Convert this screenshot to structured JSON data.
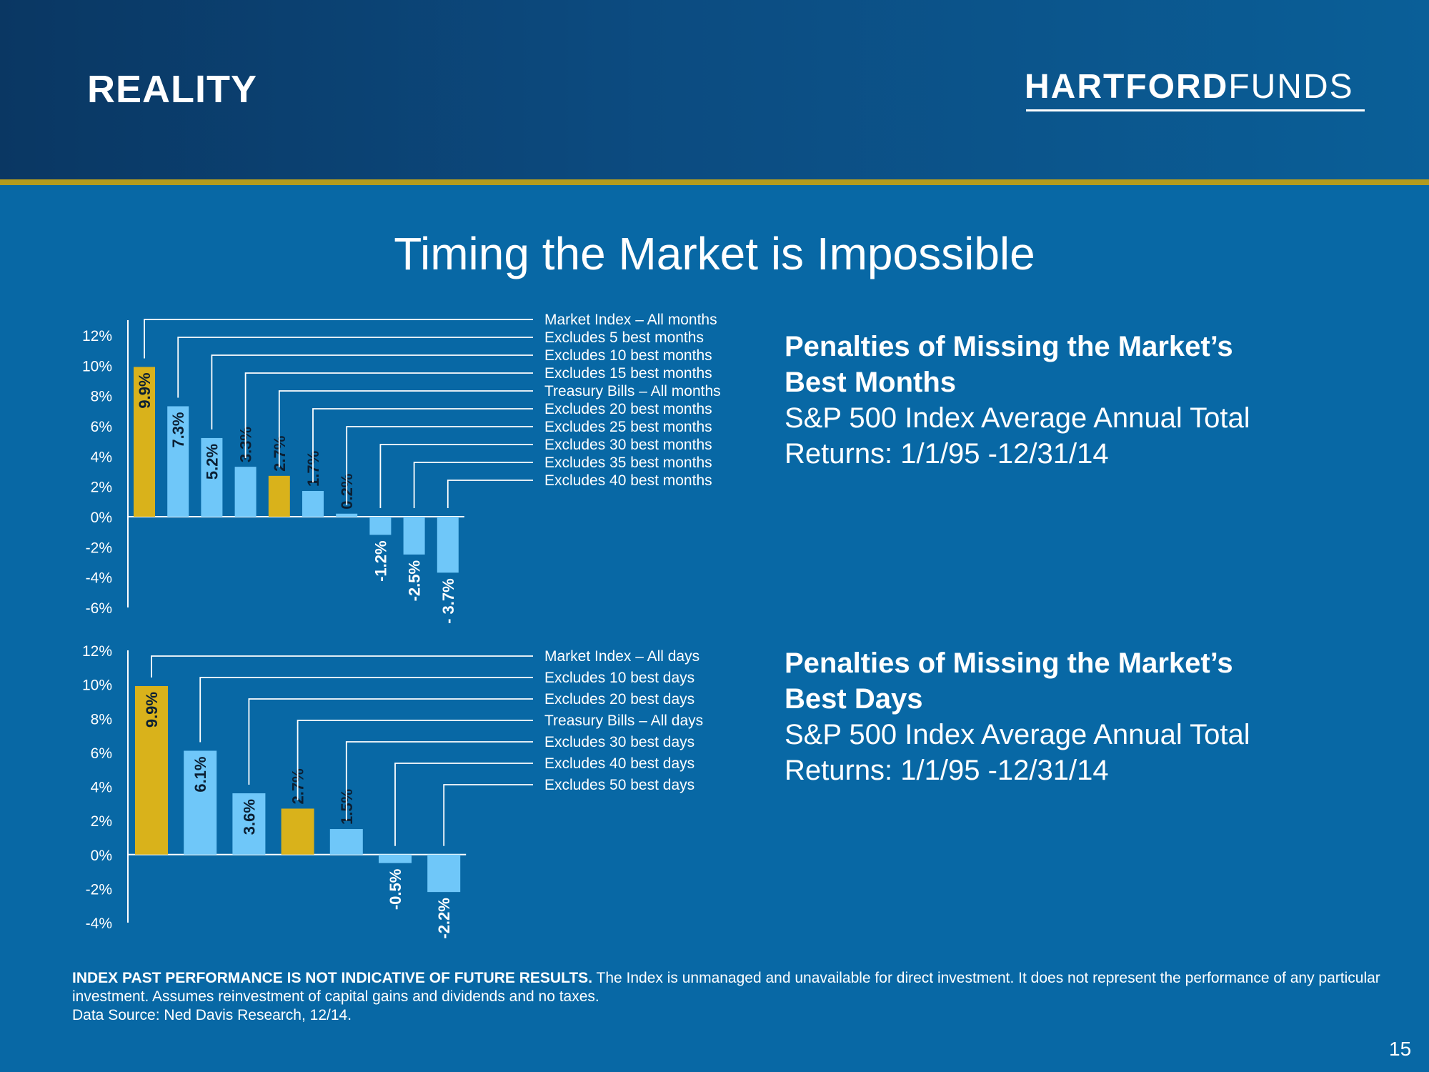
{
  "header": {
    "section_label": "REALITY",
    "logo_bold": "HARTFORD",
    "logo_light": "FUNDS"
  },
  "title": "Timing the Market is Impossible",
  "colors": {
    "background": "#0868a5",
    "bar_highlight": "#d9b21b",
    "bar_regular": "#6fc7f9",
    "gold_rule": "#b39b1f"
  },
  "panels": {
    "months": {
      "heading_line1": "Penalties of Missing the Market’s",
      "heading_line2": "Best Months",
      "sub_line1": "S&P 500 Index Average Annual Total",
      "sub_line2": "Returns: 1/1/95 -12/31/14"
    },
    "days": {
      "heading_line1": "Penalties of Missing the Market’s",
      "heading_line2": "Best Days",
      "sub_line1": "S&P 500 Index Average Annual Total",
      "sub_line2": "Returns: 1/1/95 -12/31/14"
    }
  },
  "chart_data": [
    {
      "type": "bar",
      "categories": [
        "Market Index – All months",
        "Excludes 5 best months",
        "Excludes 10 best months",
        "Excludes 15 best months",
        "Treasury Bills – All months",
        "Excludes 20 best months",
        "Excludes 25 best months",
        "Excludes 30 best months",
        "Excludes 35 best months",
        "Excludes 40 best months"
      ],
      "values": [
        9.9,
        7.3,
        5.2,
        3.3,
        2.7,
        1.7,
        0.2,
        -1.2,
        -2.5,
        -3.7
      ],
      "data_labels": [
        "9.9%",
        "7.3%",
        "5.2%",
        "3.3%",
        "2.7%",
        "1.7%",
        "0.2%",
        "-1.2%",
        "-2.5%",
        "- 3.7%"
      ],
      "highlight": [
        true,
        false,
        false,
        false,
        true,
        false,
        false,
        false,
        false,
        false
      ],
      "yticks": [
        "12%",
        "10%",
        "8%",
        "6%",
        "4%",
        "2%",
        "0%",
        "-2%",
        "-4%",
        "-6%"
      ],
      "ylim": [
        -6,
        12
      ],
      "grid": false,
      "legend": "leader-lines-right"
    },
    {
      "type": "bar",
      "categories": [
        "Market Index – All days",
        "Excludes 10 best days",
        "Excludes 20 best days",
        "Treasury Bills – All days",
        "Excludes 30 best days",
        "Excludes 40 best days",
        "Excludes 50 best days"
      ],
      "values": [
        9.9,
        6.1,
        3.6,
        2.7,
        1.5,
        -0.5,
        -2.2
      ],
      "data_labels": [
        "9.9%",
        "6.1%",
        "3.6%",
        "2.7%",
        "1.5%",
        "-0.5%",
        "-2.2%"
      ],
      "highlight": [
        true,
        false,
        false,
        true,
        false,
        false,
        false
      ],
      "yticks": [
        "12%",
        "10%",
        "8%",
        "6%",
        "4%",
        "2%",
        "0%",
        "-2%",
        "-4%"
      ],
      "ylim": [
        -4,
        12
      ],
      "grid": false,
      "legend": "leader-lines-right"
    }
  ],
  "footnote": {
    "bold": "INDEX PAST PERFORMANCE IS NOT INDICATIVE OF FUTURE RESULTS.",
    "text": " The Index is unmanaged and unavailable for direct investment. It does not represent the performance of any particular investment. Assumes reinvestment of capital gains and dividends and no taxes.",
    "source": "Data Source: Ned Davis Research, 12/14."
  },
  "page_number": "15"
}
